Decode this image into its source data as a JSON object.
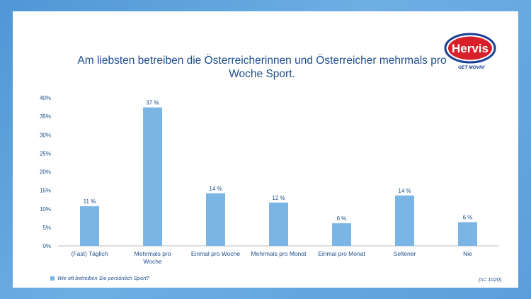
{
  "chart_data": {
    "type": "bar",
    "title": "Am liebsten betreiben die Österreicherinnen und Österreicher mehrmals pro Woche Sport.",
    "categories": [
      "(Fast) Täglich",
      "Mehrmals pro Woche",
      "Einmal pro Woche",
      "Mehrmals pro Monat",
      "Einmal pro Monat",
      "Seltener",
      "Nie"
    ],
    "category_lines": [
      [
        "(Fast) Täglich"
      ],
      [
        "Mehrmals pro",
        "Woche"
      ],
      [
        "Einmal pro Woche"
      ],
      [
        "Mehrmals pro Monat"
      ],
      [
        "Einmal pro Monat"
      ],
      [
        "Seltener"
      ],
      [
        "Nie"
      ]
    ],
    "series": [
      {
        "name": "Wie oft betreiben Sie persönlich Sport?",
        "values": [
          10.7,
          37.4,
          14.2,
          11.7,
          6.1,
          13.6,
          6.4
        ],
        "labels": [
          "11 %",
          "37 %",
          "14 %",
          "12 %",
          "6 %",
          "14 %",
          "6 %"
        ]
      }
    ],
    "yticks": [
      "0%",
      "5%",
      "10%",
      "15%",
      "20%",
      "25%",
      "30%",
      "35%",
      "40%"
    ],
    "ylim": [
      0,
      40
    ],
    "grid": false,
    "legend": "bottom-left",
    "note": "(n= 1020)",
    "bar_color": "#7ab5e5"
  },
  "brand": {
    "name": "Hervis",
    "slogan": "GET MOVIN'"
  }
}
